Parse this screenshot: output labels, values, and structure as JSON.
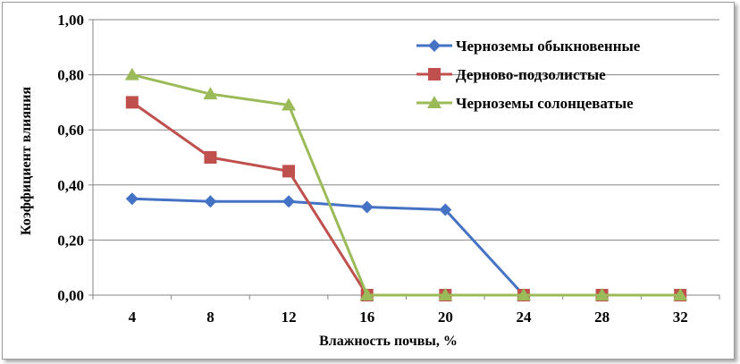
{
  "chart_data": {
    "type": "line",
    "title": "",
    "xlabel": "Влажность почвы, %",
    "ylabel": "Коэффициент влияния",
    "x": [
      4,
      8,
      12,
      16,
      20,
      24,
      28,
      32
    ],
    "x_tick_labels": [
      "4",
      "8",
      "12",
      "16",
      "20",
      "24",
      "28",
      "32"
    ],
    "y_tick_labels": [
      "0,00",
      "0,20",
      "0,40",
      "0,60",
      "0,80",
      "1,00"
    ],
    "y_ticks": [
      0,
      0.2,
      0.4,
      0.6,
      0.8,
      1.0
    ],
    "ylim": [
      0,
      1.0
    ],
    "grid": true,
    "legend_position": "top-right",
    "series": [
      {
        "name": "Черноземы обыкновенные",
        "color": "#4472C4",
        "marker": "diamond",
        "values": [
          0.35,
          0.34,
          0.34,
          0.32,
          0.31,
          0.0,
          0.0,
          0.0
        ]
      },
      {
        "name": "Дерново-подзолистые",
        "color": "#C0504D",
        "marker": "square",
        "values": [
          0.7,
          0.5,
          0.45,
          0.0,
          0.0,
          0.0,
          0.0,
          0.0
        ]
      },
      {
        "name": "Черноземы солонцеватые",
        "color": "#9BBB59",
        "marker": "triangle",
        "values": [
          0.8,
          0.73,
          0.69,
          0.0,
          0.0,
          0.0,
          0.0,
          0.0
        ]
      }
    ]
  }
}
